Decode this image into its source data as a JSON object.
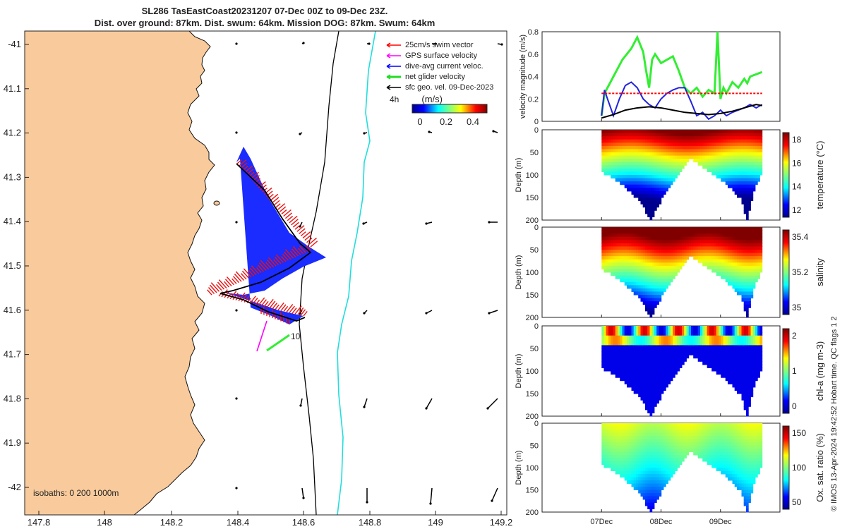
{
  "title": {
    "line1": "SL286 TasEastCoast20231207 07-Dec 00Z to 09-Dec 23Z.",
    "line2": "Dist. over ground: 87km. Dist. swum: 64km. Mission DOG: 87km. Swum: 64km"
  },
  "map": {
    "legend": [
      {
        "label": "25cm/s swim vector",
        "color": "#ff0000"
      },
      {
        "label": "GPS surface velocity",
        "color": "#ff00ff"
      },
      {
        "label": "dive-avg current veloc.",
        "color": "#0000ff"
      },
      {
        "label": "net glider velocity",
        "color": "#22dd22"
      },
      {
        "label": "sfc geo. vel. 09-Dec-2023",
        "color": "#000000"
      }
    ],
    "time_label": "4h",
    "colorbar_title": "(m/s)",
    "colorbar_ticks": [
      "0",
      "0.2",
      "0.4"
    ],
    "isobath_label": "isobaths: 0   200  1000m",
    "track_label": "10",
    "land_color": "#f9cb9c",
    "x_ticks": [
      "147.8",
      "148",
      "148.2",
      "148.4",
      "148.6",
      "148.8",
      "149",
      "149.2"
    ],
    "y_ticks": [
      "-41",
      "41.1",
      "41.2",
      "41.3",
      "41.4",
      "41.5",
      "41.6",
      "41.7",
      "41.8",
      "41.9",
      "-42"
    ]
  },
  "chart_data": [
    {
      "type": "line",
      "ylabel": "velocity magnitude (m/s)",
      "ylim": [
        0,
        0.8
      ],
      "yticks": [
        "0",
        "0.2",
        "0.4",
        "0.6",
        "0.8"
      ],
      "x_range_days": [
        "06-Dec",
        "10-Dec"
      ],
      "series": [
        {
          "color": "#33ee33",
          "x": [
            1.0,
            1.05,
            1.2,
            1.35,
            1.5,
            1.6,
            1.7,
            1.75,
            1.8,
            1.85,
            1.9,
            2.0,
            2.1,
            2.2,
            2.3,
            2.4,
            2.5,
            2.6,
            2.7,
            2.8,
            2.9,
            2.95,
            3.0,
            3.05,
            3.1,
            3.2,
            3.3,
            3.4,
            3.45,
            3.5,
            3.6,
            3.7
          ],
          "y": [
            0.05,
            0.25,
            0.4,
            0.55,
            0.65,
            0.75,
            0.62,
            0.45,
            0.3,
            0.55,
            0.6,
            0.52,
            0.55,
            0.58,
            0.45,
            0.3,
            0.25,
            0.3,
            0.22,
            0.28,
            0.25,
            0.8,
            0.2,
            0.3,
            0.25,
            0.35,
            0.3,
            0.38,
            0.34,
            0.4,
            0.42,
            0.44
          ]
        },
        {
          "color": "#2222dd",
          "x": [
            1.0,
            1.05,
            1.1,
            1.2,
            1.3,
            1.4,
            1.5,
            1.6,
            1.7,
            1.8,
            1.9,
            2.0,
            2.1,
            2.2,
            2.3,
            2.4,
            2.5,
            2.6,
            2.7,
            2.8,
            2.9,
            3.0,
            3.1,
            3.2,
            3.3,
            3.4,
            3.5,
            3.6,
            3.7
          ],
          "y": [
            0.05,
            0.28,
            0.2,
            0.05,
            0.2,
            0.32,
            0.35,
            0.3,
            0.2,
            0.15,
            0.12,
            0.2,
            0.25,
            0.28,
            0.3,
            0.3,
            0.18,
            0.05,
            0.08,
            0.02,
            0.05,
            0.1,
            0.05,
            0.08,
            0.1,
            0.12,
            0.15,
            0.12,
            0.15
          ]
        },
        {
          "color": "#000000",
          "x": [
            1.0,
            1.2,
            1.4,
            1.6,
            1.8,
            2.0,
            2.2,
            2.4,
            2.6,
            2.8,
            3.0,
            3.2,
            3.4,
            3.6,
            3.7
          ],
          "y": [
            0.03,
            0.06,
            0.1,
            0.12,
            0.13,
            0.12,
            0.1,
            0.08,
            0.07,
            0.06,
            0.07,
            0.09,
            0.12,
            0.15,
            0.14
          ]
        },
        {
          "color": "#ff0000",
          "x": [
            1.0,
            3.7
          ],
          "y": [
            0.25,
            0.25
          ],
          "dashed": true
        }
      ]
    },
    {
      "type": "heatmap",
      "ylabel": "Depth (m)",
      "colorbar_label": "temperature (°C)",
      "cticks": [
        "12",
        "14",
        "16",
        "18"
      ],
      "yticks": [
        "0",
        "50",
        "100",
        "150",
        "200"
      ]
    },
    {
      "type": "heatmap",
      "ylabel": "Depth (m)",
      "colorbar_label": "salinity",
      "cticks": [
        "35",
        "35.2",
        "35.4"
      ],
      "yticks": [
        "0",
        "50",
        "100",
        "150",
        "200"
      ]
    },
    {
      "type": "heatmap",
      "ylabel": "Depth (m)",
      "colorbar_label": "chl-a (mg m-3)",
      "cticks": [
        "0",
        "1",
        "2"
      ],
      "yticks": [
        "0",
        "50",
        "100",
        "150",
        "200"
      ]
    },
    {
      "type": "heatmap",
      "ylabel": "Depth (m)",
      "colorbar_label": "Ox. sat. ratio (%)",
      "cticks": [
        "50",
        "100",
        "150"
      ],
      "yticks": [
        "0",
        "50",
        "100",
        "150",
        "200"
      ]
    }
  ],
  "time_axis": {
    "ticks": [
      "07Dec",
      "08Dec",
      "09Dec"
    ]
  },
  "credit": "© IMOS 13-Apr-2024 19:42:52 Hobart time. QC flags 1  2"
}
